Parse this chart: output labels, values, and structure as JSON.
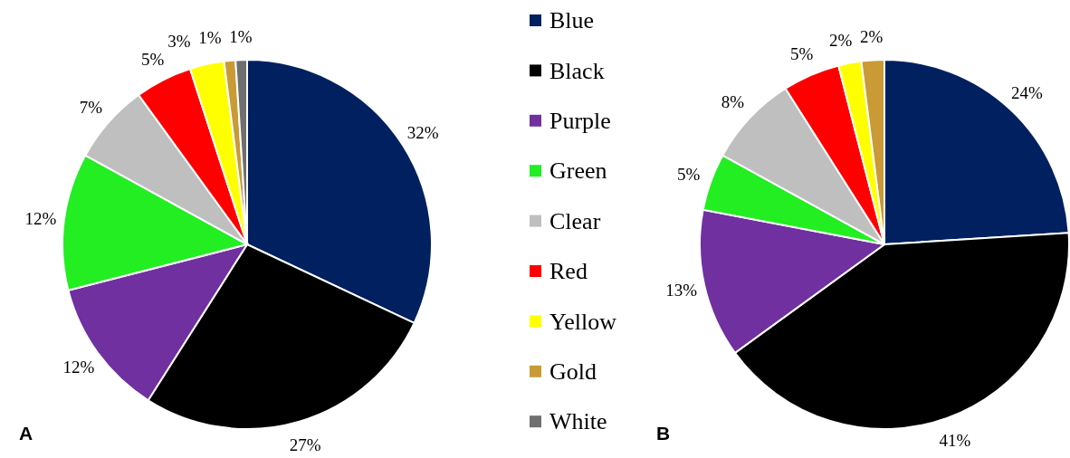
{
  "chart_data": [
    {
      "type": "pie",
      "title": "A",
      "legend": "right",
      "categories": [
        "Blue",
        "Black",
        "Purple",
        "Green",
        "Clear",
        "Red",
        "Yellow",
        "Gold",
        "White"
      ],
      "values": [
        32,
        27,
        12,
        12,
        7,
        5,
        3,
        1,
        1
      ],
      "value_labels": [
        "32%",
        "27%",
        "12%",
        "12%",
        "7%",
        "5%",
        "3%",
        "1%",
        "1%"
      ],
      "colors": [
        "#002060",
        "#000000",
        "#7030a0",
        "#22ee22",
        "#bfbfbf",
        "#ff0000",
        "#ffff00",
        "#c99a36",
        "#6f6f6f"
      ]
    },
    {
      "type": "pie",
      "title": "B",
      "categories": [
        null,
        null,
        null,
        null,
        null,
        null,
        null,
        null
      ],
      "values": [
        24,
        41,
        13,
        5,
        8,
        5,
        2,
        2
      ],
      "value_labels": [
        "24%",
        "41%",
        "13%",
        "5%",
        "8%",
        "5%",
        "2%",
        "2%"
      ],
      "colors": [
        "#002060",
        "#000000",
        "#7030a0",
        "#22ee22",
        "#bfbfbf",
        "#ff0000",
        "#ffff00",
        "#c99a36"
      ]
    }
  ]
}
